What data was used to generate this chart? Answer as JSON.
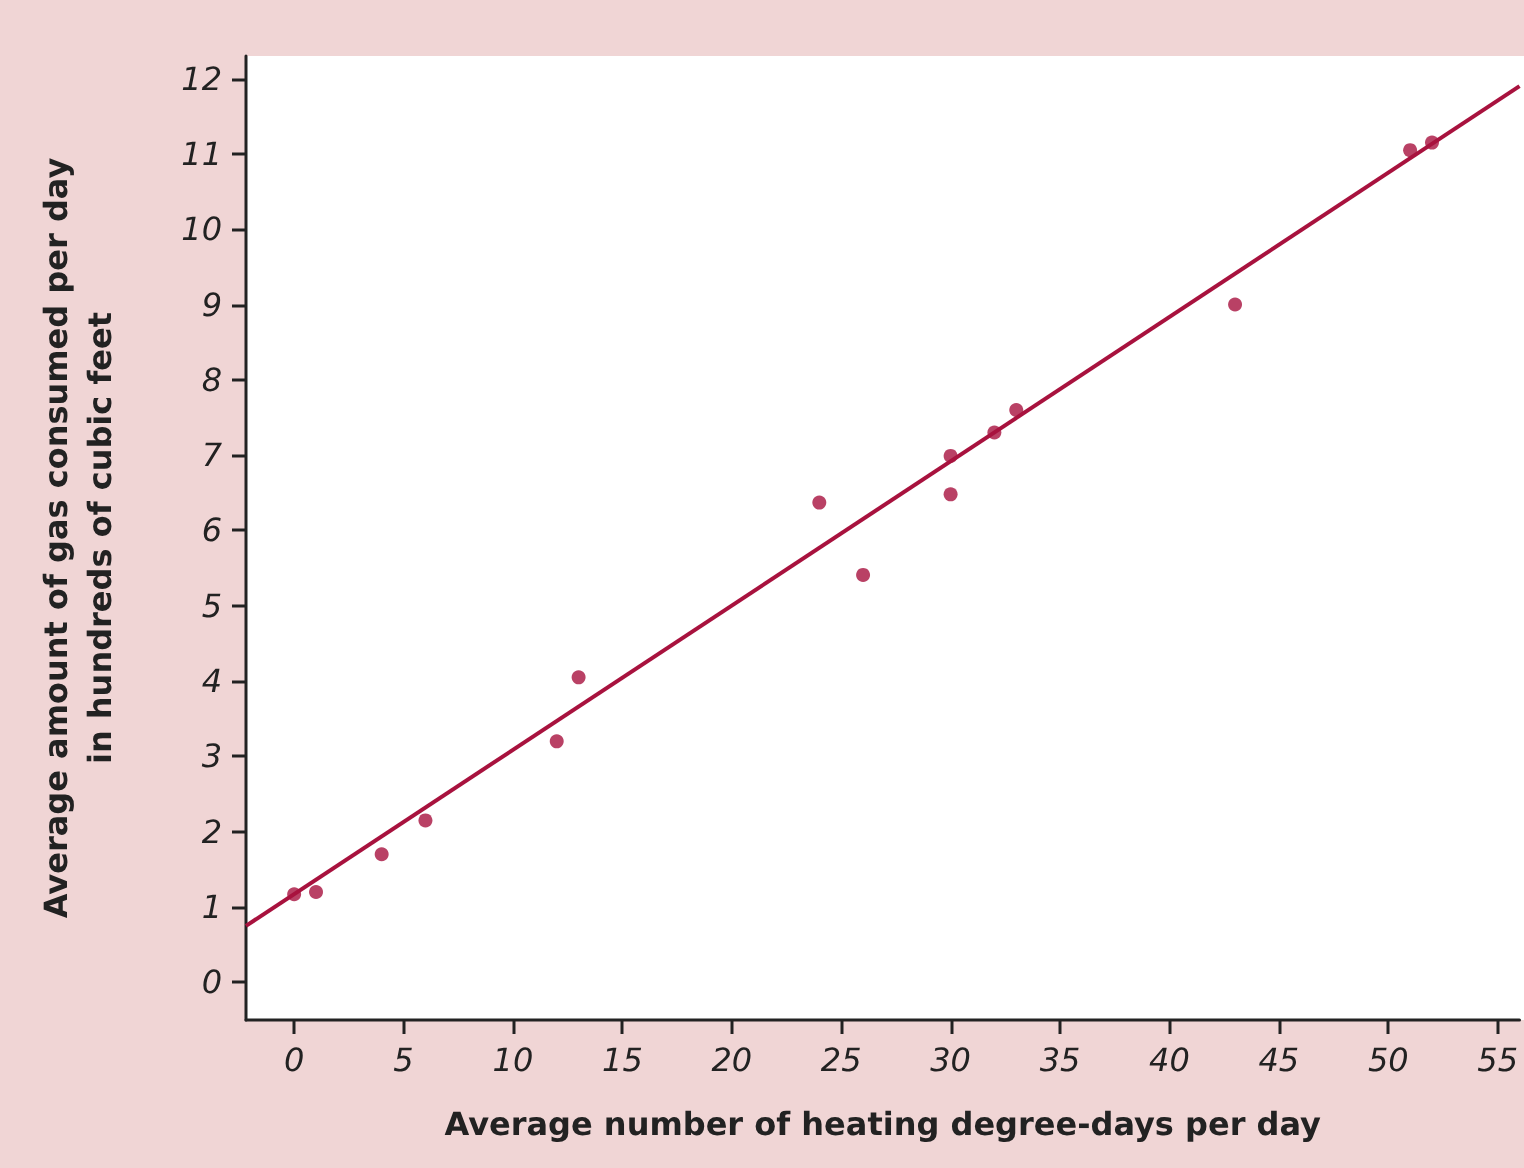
{
  "chart_data": {
    "type": "scatter",
    "xlabel": "Average number of heating degree-days per day",
    "ylabel": "Average amount of gas consumed per day\nin hundreds of cubic feet",
    "xlim": [
      -2.2,
      56
    ],
    "xticks": [
      0,
      5,
      10,
      15,
      20,
      25,
      30,
      35,
      40,
      45,
      50,
      55
    ],
    "ylim": [
      -0.5,
      12.3
    ],
    "yticks": [
      0,
      1,
      2,
      3,
      4,
      5,
      6,
      7,
      8,
      9,
      10,
      11,
      12
    ],
    "grid": false,
    "marker": "circle",
    "series": [
      {
        "type": "scatter",
        "color": "#a8123e",
        "x": [
          0,
          1,
          4,
          6,
          12,
          13,
          24,
          26,
          30,
          30,
          32,
          33,
          43,
          51,
          52
        ],
        "values": [
          1.17,
          1.2,
          1.7,
          2.15,
          3.2,
          4.05,
          6.37,
          5.41,
          6.99,
          6.48,
          7.3,
          7.6,
          9.0,
          11.05,
          11.15
        ]
      },
      {
        "type": "line",
        "color": "#a8123e",
        "marker": "none",
        "x": [
          -2.2,
          56
        ],
        "values": [
          0.75,
          11.9
        ]
      }
    ]
  }
}
